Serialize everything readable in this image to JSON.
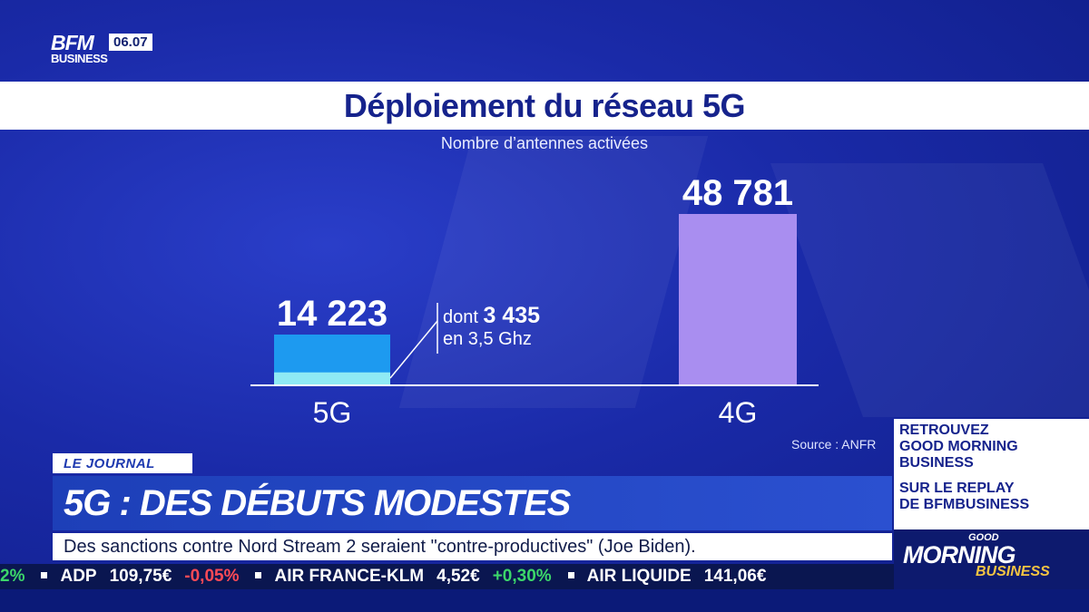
{
  "logo": {
    "brand": "BFM",
    "sub": "BUSINESS",
    "time": "06.07"
  },
  "chart_data": {
    "type": "bar",
    "title": "Déploiement du réseau 5G",
    "subtitle": "Nombre d’antennes activées",
    "categories": [
      "5G",
      "4G"
    ],
    "values": [
      14223,
      48781
    ],
    "value_labels": [
      "14 223",
      "48 781"
    ],
    "sub_segment": {
      "category": "5G",
      "value": 3435
    },
    "annotation": {
      "prefix": "dont",
      "value": "3 435",
      "suffix": "en 3,5 Ghz"
    },
    "colors": {
      "5G": "#1d9af0",
      "5G_sub": "#8feaf4",
      "4G": "#a98ef0"
    },
    "source": "Source : ANFR"
  },
  "lower_third": {
    "tag": "LE JOURNAL",
    "headline": "5G : DES DÉBUTS MODESTES",
    "crawl": "Des sanctions contre Nord Stream 2 seraient \"contre-productives\" (Joe Biden)."
  },
  "ticker": [
    {
      "text": "2%",
      "color": "green"
    },
    {
      "text": "ADP",
      "color": "white"
    },
    {
      "text": "109,75€",
      "color": "white"
    },
    {
      "text": "-0,05%",
      "color": "red"
    },
    {
      "text": "AIR FRANCE-KLM",
      "color": "white"
    },
    {
      "text": "4,52€",
      "color": "white"
    },
    {
      "text": "+0,30%",
      "color": "green"
    },
    {
      "text": "AIR LIQUIDE",
      "color": "white"
    },
    {
      "text": "141,06€",
      "color": "white"
    }
  ],
  "promo": {
    "line1": "RETROUVEZ",
    "line2": "GOOD MORNING",
    "line3": "BUSINESS",
    "line4": "SUR LE REPLAY",
    "line5": "DE BFMBUSINESS"
  },
  "show_logo": {
    "good": "GOOD",
    "morning": "MORNING",
    "business": "BUSINESS"
  }
}
